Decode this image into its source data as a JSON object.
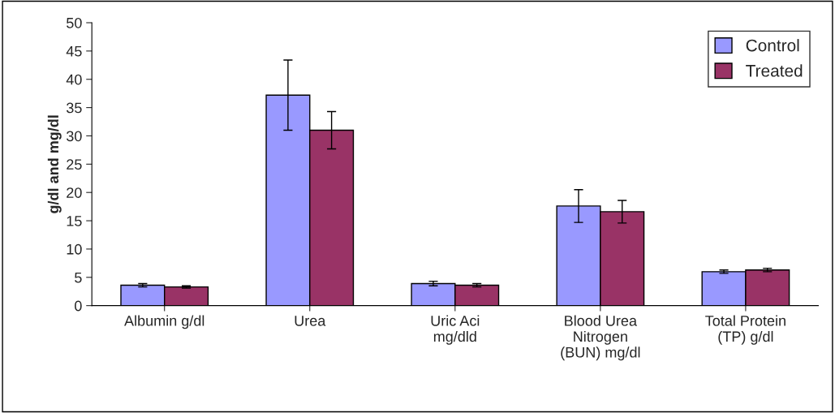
{
  "chart_data": {
    "type": "bar",
    "ylabel": "g/dl and mg/dl",
    "categories": [
      "Albumin g/dl",
      "Urea",
      "Uric Aci\nmg/dld",
      "Blood Urea\nNitrogen\n(BUN) mg/dl",
      "Total Protein\n(TP) g/dl"
    ],
    "series": [
      {
        "name": "Control",
        "color": "#9999ff",
        "values": [
          3.6,
          37.2,
          3.9,
          17.6,
          6.0
        ],
        "errors": [
          0.3,
          6.2,
          0.4,
          2.9,
          0.3
        ]
      },
      {
        "name": "Treated",
        "color": "#993366",
        "values": [
          3.3,
          31.0,
          3.6,
          16.6,
          6.3
        ],
        "errors": [
          0.2,
          3.3,
          0.3,
          2.0,
          0.3
        ]
      }
    ],
    "ylim": [
      0,
      50
    ],
    "yticks": [
      0,
      5,
      10,
      15,
      20,
      25,
      30,
      35,
      40,
      45,
      50
    ],
    "grid": false,
    "legend": "top right"
  }
}
